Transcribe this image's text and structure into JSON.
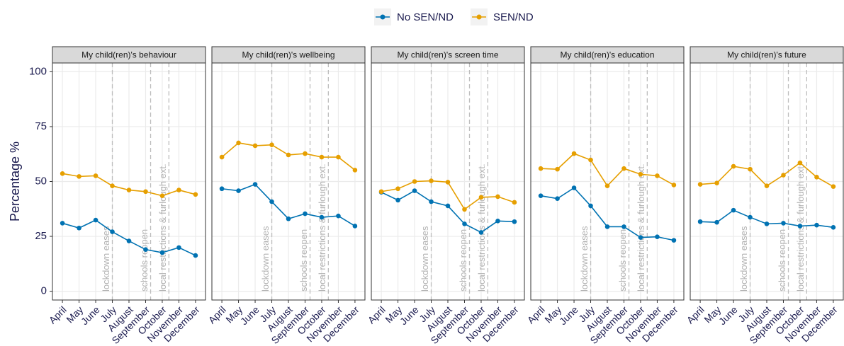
{
  "chart_data": [
    {
      "type": "line",
      "title": "My child(ren)'s behaviour",
      "y_label": "Percentage %",
      "categories": [
        "April",
        "May",
        "June",
        "July",
        "August",
        "September",
        "October",
        "November",
        "December"
      ],
      "series": [
        {
          "name": "No SEN/ND",
          "color": "#0072b2",
          "values": [
            31.0,
            28.8,
            32.4,
            27.1,
            22.9,
            19.0,
            17.6,
            19.9,
            16.3
          ]
        },
        {
          "name": "SEN/ND",
          "color": "#e69f00",
          "values": [
            53.6,
            52.3,
            52.6,
            48.0,
            46.1,
            45.4,
            43.5,
            46.1,
            44.1
          ]
        }
      ],
      "ylim": [
        -4,
        104
      ],
      "yticks": [
        0,
        25,
        50,
        75,
        100
      ],
      "grid": true,
      "annotations": [
        {
          "x": "July",
          "label": "lockdown eases"
        },
        {
          "x": "September",
          "label": "schools reopen"
        },
        {
          "x": "October",
          "label": "local restrictions & furlough ext."
        }
      ]
    },
    {
      "type": "line",
      "title": "My child(ren)'s wellbeing",
      "categories": [
        "April",
        "May",
        "June",
        "July",
        "August",
        "September",
        "October",
        "November",
        "December"
      ],
      "series": [
        {
          "color": "#0072b2",
          "values": [
            46.7,
            45.8,
            48.7,
            40.8,
            33.0,
            35.3,
            33.7,
            34.3,
            29.7
          ]
        },
        {
          "color": "#e69f00",
          "values": [
            61.1,
            67.6,
            66.3,
            66.7,
            62.1,
            62.7,
            61.1,
            61.1,
            55.2
          ]
        }
      ],
      "ylim": [
        -4,
        104
      ],
      "yticks": [
        0,
        25,
        50,
        75,
        100
      ],
      "grid": true,
      "annotations": [
        {
          "x": "July",
          "label": "lockdown eases"
        },
        {
          "x": "September",
          "label": "schools reopen"
        },
        {
          "x": "October",
          "label": "local restrictions & furlough ext."
        }
      ]
    },
    {
      "type": "line",
      "title": "My child(ren)'s screen time",
      "categories": [
        "April",
        "May",
        "June",
        "July",
        "August",
        "September",
        "October",
        "November",
        "December"
      ],
      "series": [
        {
          "color": "#0072b2",
          "values": [
            45.1,
            41.5,
            45.8,
            40.8,
            38.9,
            30.7,
            26.8,
            32.0,
            31.7
          ]
        },
        {
          "color": "#e69f00",
          "values": [
            45.4,
            46.7,
            50.0,
            50.3,
            49.7,
            37.3,
            42.8,
            43.1,
            40.5
          ]
        }
      ],
      "ylim": [
        -4,
        104
      ],
      "yticks": [
        0,
        25,
        50,
        75,
        100
      ],
      "grid": true,
      "annotations": [
        {
          "x": "July",
          "label": "lockdown eases"
        },
        {
          "x": "September",
          "label": "schools reopen"
        },
        {
          "x": "October",
          "label": "local restrictions & furlough ext."
        }
      ]
    },
    {
      "type": "line",
      "title": "My child(ren)'s education",
      "categories": [
        "April",
        "May",
        "June",
        "July",
        "August",
        "September",
        "October",
        "November",
        "December"
      ],
      "series": [
        {
          "color": "#0072b2",
          "values": [
            43.5,
            42.2,
            47.1,
            38.9,
            29.4,
            29.4,
            24.5,
            24.8,
            23.2
          ]
        },
        {
          "color": "#e69f00",
          "values": [
            55.9,
            55.6,
            62.7,
            59.8,
            48.0,
            55.9,
            53.3,
            52.6,
            48.4
          ]
        }
      ],
      "ylim": [
        -4,
        104
      ],
      "yticks": [
        0,
        25,
        50,
        75,
        100
      ],
      "grid": true,
      "annotations": [
        {
          "x": "July",
          "label": "lockdown eases"
        },
        {
          "x": "September",
          "label": "schools reopen"
        },
        {
          "x": "October",
          "label": "local restrictions & furlough ext."
        }
      ]
    },
    {
      "type": "line",
      "title": "My child(ren)'s future",
      "categories": [
        "April",
        "May",
        "June",
        "July",
        "August",
        "September",
        "October",
        "November",
        "December"
      ],
      "series": [
        {
          "color": "#0072b2",
          "values": [
            31.7,
            31.4,
            36.9,
            33.7,
            30.7,
            31.0,
            29.7,
            30.1,
            29.1
          ]
        },
        {
          "color": "#e69f00",
          "values": [
            48.7,
            49.3,
            56.9,
            55.6,
            48.0,
            52.9,
            58.5,
            52.0,
            47.7
          ]
        }
      ],
      "ylim": [
        -4,
        104
      ],
      "yticks": [
        0,
        25,
        50,
        75,
        100
      ],
      "grid": true,
      "annotations": [
        {
          "x": "July",
          "label": "lockdown eases"
        },
        {
          "x": "September",
          "label": "schools reopen"
        },
        {
          "x": "October",
          "label": "local restrictions & furlough ext."
        }
      ]
    }
  ]
}
